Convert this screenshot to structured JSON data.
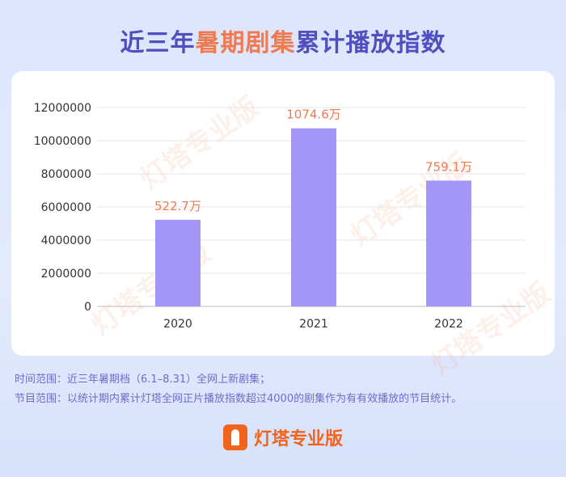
{
  "title": {
    "part1": "近三年",
    "highlight": "暑期剧集",
    "part2": "累计播放指数"
  },
  "chart_data": {
    "type": "bar",
    "categories": [
      "2020",
      "2021",
      "2022"
    ],
    "values": [
      5227000,
      10746000,
      7591000
    ],
    "data_labels": [
      "522.7万",
      "1074.6万",
      "759.1万"
    ],
    "ylim": [
      0,
      12000000
    ],
    "yticks": [
      "0",
      "2000000",
      "4000000",
      "6000000",
      "8000000",
      "10000000",
      "12000000"
    ],
    "grid": true,
    "bar_color": "#a496f6",
    "label_color": "#f07a4f"
  },
  "notes": [
    "时间范围：近三年暑期档（6.1–8.31）全网上新剧集；",
    "节目范围：以统计期内累计灯塔全网正片播放指数超过4000的剧集作为有有效播放的节目统计。"
  ],
  "brand": {
    "name": "灯塔专业版",
    "watermark": "灯塔专业版",
    "color": "#f2641e"
  }
}
